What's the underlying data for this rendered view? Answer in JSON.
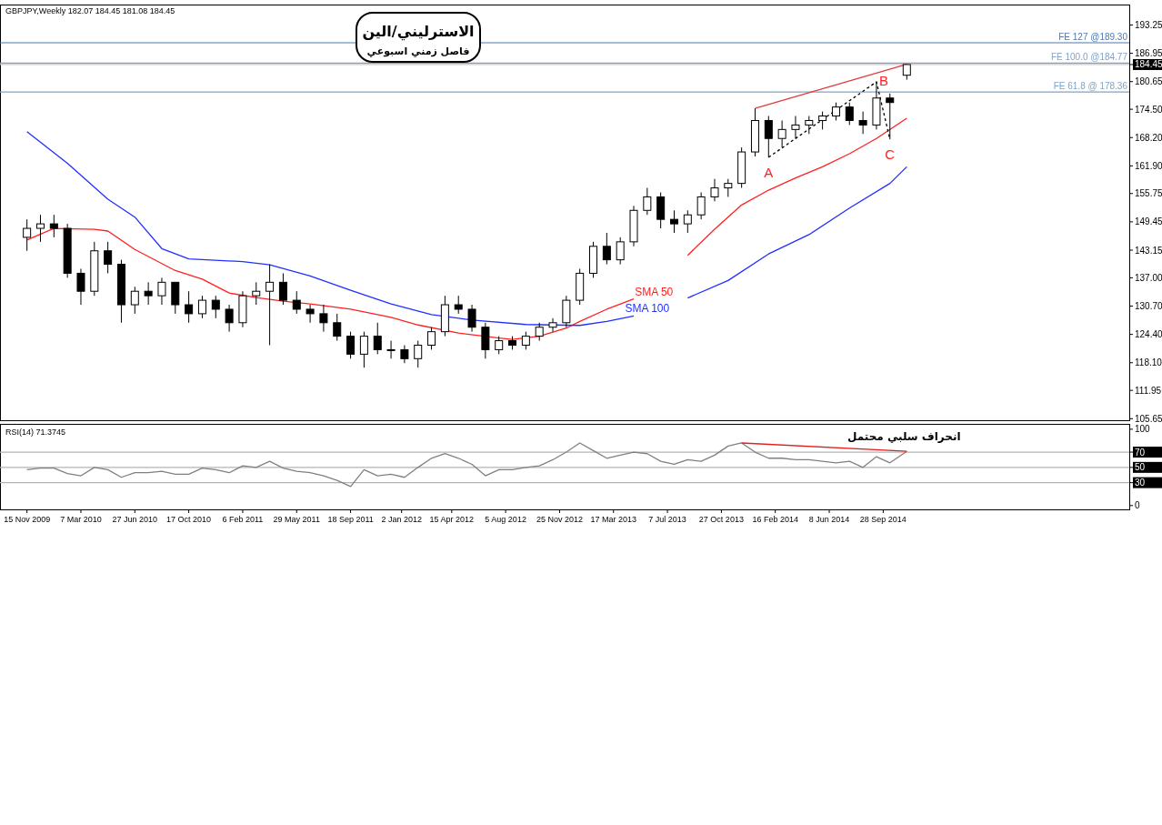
{
  "chart_data": [
    {
      "type": "candlestick",
      "title": "الاسترليني/الين",
      "subtitle": "فاصل زمني اسبوعي",
      "annotations": [
        "GBPJPY,Weekly  182.07 184.45 181.08 184.45",
        {
          "text": "A",
          "x": "2014-02-02",
          "y": 163.8
        },
        {
          "text": "B",
          "x": "2014-09-14",
          "y": 180.6
        },
        {
          "text": "C",
          "x": "2014-10-12",
          "y": 167.8
        }
      ],
      "x": [
        "2009-11-15",
        "2009-12-13",
        "2010-01-10",
        "2010-02-07",
        "2010-03-07",
        "2010-04-04",
        "2010-05-02",
        "2010-05-30",
        "2010-06-27",
        "2010-07-25",
        "2010-08-22",
        "2010-09-19",
        "2010-10-17",
        "2010-11-14",
        "2010-12-12",
        "2011-01-09",
        "2011-02-06",
        "2011-03-06",
        "2011-04-03",
        "2011-05-01",
        "2011-05-29",
        "2011-06-26",
        "2011-07-24",
        "2011-08-21",
        "2011-09-18",
        "2011-10-16",
        "2011-11-13",
        "2011-12-11",
        "2012-01-08",
        "2012-02-05",
        "2012-03-04",
        "2012-04-01",
        "2012-04-29",
        "2012-05-27",
        "2012-06-24",
        "2012-07-22",
        "2012-08-19",
        "2012-09-16",
        "2012-10-14",
        "2012-11-11",
        "2012-12-09",
        "2013-01-06",
        "2013-02-03",
        "2013-03-03",
        "2013-03-31",
        "2013-04-28",
        "2013-05-26",
        "2013-06-23",
        "2013-07-21",
        "2013-08-18",
        "2013-09-15",
        "2013-10-13",
        "2013-11-10",
        "2013-12-08",
        "2014-01-05",
        "2014-02-02",
        "2014-03-02",
        "2014-03-30",
        "2014-04-27",
        "2014-05-25",
        "2014-06-22",
        "2014-07-20",
        "2014-08-17",
        "2014-09-14",
        "2014-10-12",
        "2014-11-16"
      ],
      "ohlc": [
        [
          146,
          150,
          143,
          148
        ],
        [
          148,
          151,
          145,
          149
        ],
        [
          149,
          151,
          146,
          148
        ],
        [
          148,
          149,
          137,
          138
        ],
        [
          138,
          139,
          131,
          134
        ],
        [
          134,
          145,
          133,
          143
        ],
        [
          143,
          145,
          138,
          140
        ],
        [
          140,
          141,
          127,
          131
        ],
        [
          131,
          135,
          129,
          134
        ],
        [
          134,
          136,
          131,
          133
        ],
        [
          133,
          137,
          131,
          136
        ],
        [
          136,
          136,
          129,
          131
        ],
        [
          131,
          134,
          127,
          129
        ],
        [
          129,
          133,
          128,
          132
        ],
        [
          132,
          133,
          128,
          130
        ],
        [
          130,
          131,
          125,
          127
        ],
        [
          127,
          134,
          126,
          133
        ],
        [
          133,
          136,
          131,
          134
        ],
        [
          134,
          140,
          122,
          136
        ],
        [
          136,
          138,
          131,
          132
        ],
        [
          132,
          134,
          129,
          130
        ],
        [
          130,
          131,
          127,
          129
        ],
        [
          129,
          131,
          125,
          127
        ],
        [
          127,
          129,
          123,
          124
        ],
        [
          124,
          125,
          119,
          120
        ],
        [
          120,
          125,
          117,
          124
        ],
        [
          124,
          127,
          120,
          121
        ],
        [
          121,
          123,
          119,
          121
        ],
        [
          121,
          122,
          118,
          119
        ],
        [
          119,
          123,
          117,
          122
        ],
        [
          122,
          126,
          121,
          125
        ],
        [
          125,
          133,
          124,
          131
        ],
        [
          131,
          133,
          129,
          130
        ],
        [
          130,
          131,
          125,
          126
        ],
        [
          126,
          127,
          119,
          121
        ],
        [
          121,
          124,
          120,
          123
        ],
        [
          123,
          124,
          121,
          122
        ],
        [
          122,
          125,
          121,
          124
        ],
        [
          124,
          127,
          123,
          126
        ],
        [
          126,
          128,
          125,
          127
        ],
        [
          127,
          133,
          126,
          132
        ],
        [
          132,
          139,
          131,
          138
        ],
        [
          138,
          145,
          137,
          144
        ],
        [
          144,
          147,
          140,
          141
        ],
        [
          141,
          146,
          140,
          145
        ],
        [
          145,
          153,
          144,
          152
        ],
        [
          152,
          157,
          151,
          155
        ],
        [
          155,
          156,
          148,
          150
        ],
        [
          150,
          152,
          147,
          149
        ],
        [
          149,
          152,
          147,
          151
        ],
        [
          151,
          156,
          150,
          155
        ],
        [
          155,
          159,
          154,
          157
        ],
        [
          157,
          159,
          155,
          158
        ],
        [
          158,
          166,
          157,
          165
        ],
        [
          165,
          174.7,
          164,
          172
        ],
        [
          172,
          173,
          163.8,
          168
        ],
        [
          168,
          172,
          166,
          170
        ],
        [
          170,
          173,
          168,
          171
        ],
        [
          171,
          173,
          169,
          172
        ],
        [
          172,
          174,
          170,
          173
        ],
        [
          173,
          176,
          172,
          175
        ],
        [
          175,
          176,
          171,
          172
        ],
        [
          172,
          174,
          169,
          171
        ],
        [
          171,
          180.6,
          170,
          177
        ],
        [
          177,
          178,
          167.8,
          176
        ],
        [
          182.07,
          184.45,
          181.08,
          184.45
        ]
      ],
      "series": [
        {
          "type": "line",
          "name": "SMA 50",
          "color": "#ff2020",
          "x": [
            "2009-11-15",
            "2010-01-10",
            "2010-04-04",
            "2010-05-02",
            "2010-06-27",
            "2010-09-19",
            "2010-11-14",
            "2011-01-09",
            "2011-03-06",
            "2011-05-01",
            "2011-06-26",
            "2011-09-18",
            "2011-12-11",
            "2012-02-05",
            "2012-04-29",
            "2012-07-22",
            "2012-08-19",
            "2012-10-14",
            "2012-12-09",
            "2013-01-06",
            "2013-03-03",
            "2013-04-28",
            "2013-05-26",
            "2013-06-23",
            "2013-08-18",
            "2013-10-13",
            "2013-12-08",
            "2014-02-02",
            "2014-03-30",
            "2014-05-25",
            "2014-07-20",
            "2014-09-14",
            "2014-11-16"
          ],
          "values": [
            145.4,
            148,
            147.8,
            147.4,
            143.3,
            138.6,
            136.7,
            133.6,
            132.6,
            131.8,
            131.2,
            130,
            128.2,
            126.5,
            124.7,
            123.6,
            123.3,
            124,
            125.8,
            127.3,
            130,
            132.3,
            null,
            null,
            142,
            147.8,
            153.2,
            156.5,
            159.2,
            161.7,
            164.6,
            168,
            172.5
          ]
        },
        {
          "type": "line",
          "name": "SMA 100",
          "color": "#2030ff",
          "x": [
            "2009-11-15",
            "2010-02-07",
            "2010-05-02",
            "2010-06-27",
            "2010-08-22",
            "2010-10-17",
            "2011-02-06",
            "2011-04-03",
            "2011-06-26",
            "2011-09-18",
            "2011-12-11",
            "2012-03-04",
            "2012-05-27",
            "2012-09-16",
            "2013-01-06",
            "2013-03-03",
            "2013-04-28",
            "2013-05-26",
            "2013-08-18",
            "2013-11-10",
            "2014-02-02",
            "2014-04-27",
            "2014-07-20",
            "2014-10-12",
            "2014-11-16"
          ],
          "values": [
            169.5,
            162.5,
            154.5,
            150.5,
            143.5,
            141.2,
            140.6,
            139.9,
            137.4,
            134.2,
            131.2,
            128.8,
            127.6,
            126.6,
            126.4,
            127.3,
            128.5,
            null,
            132.5,
            136.4,
            142.3,
            146.6,
            152.5,
            158,
            161.7
          ]
        },
        {
          "type": "line",
          "color": "#e03c3c",
          "x": [
            "2014-01-05",
            "2014-11-16"
          ],
          "values": [
            174.7,
            184.5
          ]
        },
        {
          "type": "line",
          "color": "#000000",
          "line_style": "dashed",
          "x": [
            "2014-02-02",
            "2014-09-14",
            "2014-10-12"
          ],
          "values": [
            163.8,
            180.6,
            167.8
          ]
        }
      ],
      "ref_lines": [
        {
          "axis": "y",
          "value": 189.3,
          "label": "FE 127 @189.30",
          "color": "#4a7ab5"
        },
        {
          "axis": "y",
          "value": 184.77,
          "label": "FE 100.0 @184.77",
          "color": "#7fa3cc"
        },
        {
          "axis": "y",
          "value": 178.36,
          "label": "FE 61.8 @ 178.36",
          "color": "#7fa3cc"
        },
        {
          "axis": "y",
          "value": 184.45,
          "color": "#c8c8c8"
        }
      ],
      "xlim": [
        "2009-09-20",
        "2016-02-21"
      ],
      "ylim": [
        105.3,
        197.8
      ],
      "yticks": [
        {
          "value": 105.65,
          "label": "105.65"
        },
        {
          "value": 111.95,
          "label": "111.95"
        },
        {
          "value": 118.1,
          "label": "118.10"
        },
        {
          "value": 124.4,
          "label": "124.40"
        },
        {
          "value": 130.7,
          "label": "130.70"
        },
        {
          "value": 137,
          "label": "137.00"
        },
        {
          "value": 143.15,
          "label": "143.15"
        },
        {
          "value": 149.45,
          "label": "149.45"
        },
        {
          "value": 155.75,
          "label": "155.75"
        },
        {
          "value": 161.9,
          "label": "161.90"
        },
        {
          "value": 168.2,
          "label": "168.20"
        },
        {
          "value": 174.5,
          "label": "174.50"
        },
        {
          "value": 180.65,
          "label": "180.65"
        },
        {
          "value": 184.45,
          "label": "184.45"
        },
        {
          "value": 186.95,
          "label": "186.95"
        },
        {
          "value": 193.25,
          "label": "193.25"
        }
      ],
      "tick_labels": "y"
    },
    {
      "type": "line",
      "title": "RSI(14) 71.3745",
      "annotations": [
        "انحراف سلبي محتمل"
      ],
      "series": [
        {
          "color": "#808080",
          "x": [
            "2009-11-15",
            "2009-12-13",
            "2010-01-10",
            "2010-02-07",
            "2010-03-07",
            "2010-04-04",
            "2010-05-02",
            "2010-05-30",
            "2010-06-27",
            "2010-07-25",
            "2010-08-22",
            "2010-09-19",
            "2010-10-17",
            "2010-11-14",
            "2010-12-12",
            "2011-01-09",
            "2011-02-06",
            "2011-03-06",
            "2011-04-03",
            "2011-05-01",
            "2011-05-29",
            "2011-06-26",
            "2011-07-24",
            "2011-08-21",
            "2011-09-18",
            "2011-10-16",
            "2011-11-13",
            "2011-12-11",
            "2012-01-08",
            "2012-02-05",
            "2012-03-04",
            "2012-04-01",
            "2012-04-29",
            "2012-05-27",
            "2012-06-24",
            "2012-07-22",
            "2012-08-19",
            "2012-09-16",
            "2012-10-14",
            "2012-11-11",
            "2012-12-09",
            "2013-01-06",
            "2013-02-03",
            "2013-03-03",
            "2013-03-31",
            "2013-04-28",
            "2013-05-26",
            "2013-06-23",
            "2013-07-21",
            "2013-08-18",
            "2013-09-15",
            "2013-10-13",
            "2013-11-10",
            "2013-12-08",
            "2014-01-05",
            "2014-02-02",
            "2014-03-02",
            "2014-03-30",
            "2014-04-27",
            "2014-05-25",
            "2014-06-22",
            "2014-07-20",
            "2014-08-17",
            "2014-09-14",
            "2014-10-12",
            "2014-11-16"
          ],
          "values": [
            47,
            49,
            49,
            42,
            39,
            50,
            47,
            37,
            43,
            43,
            45,
            41,
            41,
            49,
            47,
            43,
            52,
            50,
            58,
            49,
            45,
            43,
            39,
            33,
            25,
            47,
            39,
            41,
            37,
            50,
            62,
            68,
            62,
            54,
            39,
            47,
            47,
            50,
            52,
            60,
            70,
            82,
            72,
            62,
            66,
            70,
            68,
            58,
            54,
            60,
            58,
            66,
            78,
            82,
            70,
            62,
            62,
            60,
            60,
            58,
            56,
            58,
            50,
            64,
            56,
            71
          ]
        },
        {
          "color": "#e02020",
          "x": [
            "2013-12-08",
            "2014-11-16"
          ],
          "values": [
            82,
            71
          ]
        }
      ],
      "ref_lines": [
        {
          "axis": "y",
          "value": 70,
          "color": "#b4b4b4"
        },
        {
          "axis": "y",
          "value": 50,
          "color": "#b4b4b4"
        },
        {
          "axis": "y",
          "value": 30,
          "color": "#b4b4b4"
        }
      ],
      "xlim": [
        "2009-09-20",
        "2016-02-21"
      ],
      "ylim": [
        -5,
        107
      ],
      "yticks": [
        0,
        30,
        50,
        70,
        100
      ],
      "xticks": [
        {
          "value": "2009-11-15",
          "label": "15 Nov 2009"
        },
        {
          "value": "2010-03-07",
          "label": "7 Mar 2010"
        },
        {
          "value": "2010-06-27",
          "label": "27 Jun 2010"
        },
        {
          "value": "2010-10-17",
          "label": "17 Oct 2010"
        },
        {
          "value": "2011-02-06",
          "label": "6 Feb 2011"
        },
        {
          "value": "2011-05-29",
          "label": "29 May 2011"
        },
        {
          "value": "2011-09-18",
          "label": "18 Sep 2011"
        },
        {
          "value": "2012-01-02",
          "label": "2 Jan 2012"
        },
        {
          "value": "2012-04-15",
          "label": "15 Apr 2012"
        },
        {
          "value": "2012-08-05",
          "label": "5 Aug 2012"
        },
        {
          "value": "2012-11-25",
          "label": "25 Nov 2012"
        },
        {
          "value": "2013-03-17",
          "label": "17 Mar 2013"
        },
        {
          "value": "2013-07-07",
          "label": "7 Jul 2013"
        },
        {
          "value": "2013-10-27",
          "label": "27 Oct 2013"
        },
        {
          "value": "2014-02-16",
          "label": "16 Feb 2014"
        },
        {
          "value": "2014-06-08",
          "label": "8 Jun 2014"
        },
        {
          "value": "2014-09-28",
          "label": "28 Sep 2014"
        }
      ]
    }
  ]
}
